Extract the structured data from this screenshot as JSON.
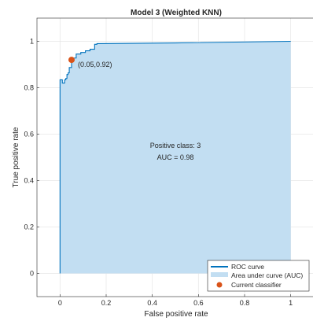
{
  "chart_data": {
    "type": "area",
    "title": "Model 3 (Weighted KNN)",
    "xlabel": "False positive rate",
    "ylabel": "True positive rate",
    "xlim": [
      -0.1,
      1.1
    ],
    "ylim": [
      -0.1,
      1.1
    ],
    "xticks": [
      0,
      0.2,
      0.4,
      0.6,
      0.8,
      1
    ],
    "yticks": [
      0,
      0.2,
      0.4,
      0.6,
      0.8,
      1
    ],
    "xtick_labels": [
      "0",
      "0.2",
      "0.4",
      "0.6",
      "0.8",
      "1"
    ],
    "ytick_labels": [
      "0",
      "0.2",
      "0.4",
      "0.6",
      "0.8",
      "1"
    ],
    "grid": true,
    "legend_position": "bottom-right",
    "series": [
      {
        "name": "ROC curve",
        "x": [
          0,
          0,
          0.01,
          0.01,
          0.02,
          0.02,
          0.025,
          0.025,
          0.03,
          0.03,
          0.035,
          0.035,
          0.04,
          0.04,
          0.05,
          0.05,
          0.06,
          0.06,
          0.07,
          0.07,
          0.09,
          0.09,
          0.11,
          0.11,
          0.13,
          0.13,
          0.15,
          0.15,
          0.16,
          0.16,
          0.5,
          1.0
        ],
        "y": [
          0,
          0.834,
          0.834,
          0.82,
          0.82,
          0.834,
          0.834,
          0.84,
          0.84,
          0.857,
          0.857,
          0.864,
          0.864,
          0.887,
          0.887,
          0.918,
          0.918,
          0.928,
          0.928,
          0.945,
          0.945,
          0.952,
          0.952,
          0.959,
          0.959,
          0.966,
          0.966,
          0.987,
          0.987,
          0.99,
          0.993,
          1.0
        ],
        "color": "#0072BD"
      },
      {
        "name": "Area under curve (AUC)",
        "color": "#C2DEF2"
      },
      {
        "name": "Current classifier",
        "x": [
          0.05
        ],
        "y": [
          0.92
        ],
        "color": "#D95319"
      }
    ],
    "annotations": [
      {
        "text": "(0.05,0.92)"
      },
      {
        "text": "Positive class: 3"
      },
      {
        "text": "AUC = 0.98"
      }
    ]
  }
}
